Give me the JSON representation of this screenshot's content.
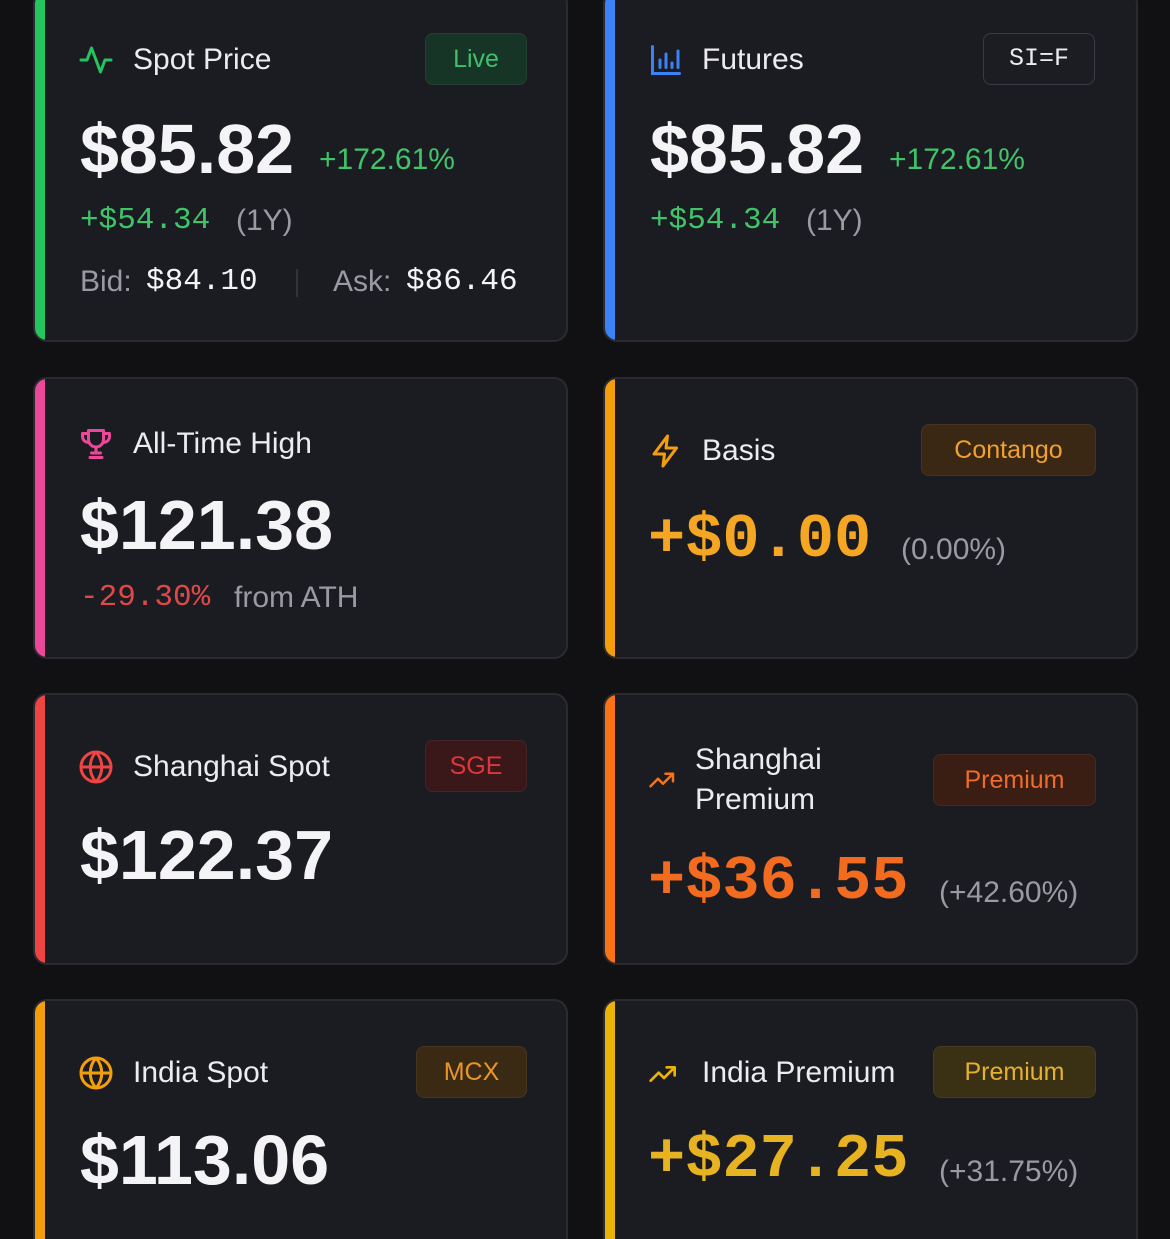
{
  "cards": [
    {
      "title": "Spot Price",
      "badge": "Live",
      "price": "$85.82",
      "change_pct": "+172.61%",
      "change_abs": "+$54.34",
      "period": "(1Y)",
      "bid_label": "Bid:",
      "bid": "$84.10",
      "ask_label": "Ask:",
      "ask": "$86.46"
    },
    {
      "title": "Futures",
      "badge": "SI=F",
      "price": "$85.82",
      "change_pct": "+172.61%",
      "change_abs": "+$54.34",
      "period": "(1Y)"
    },
    {
      "title": "All-Time High",
      "price": "$121.38",
      "change_pct": "-29.30%",
      "note": "from ATH"
    },
    {
      "title": "Basis",
      "badge": "Contango",
      "price": "+$0.00",
      "change_pct": "(0.00%)"
    },
    {
      "title": "Shanghai Spot",
      "badge": "SGE",
      "price": "$122.37"
    },
    {
      "title": "Shanghai Premium",
      "badge": "Premium",
      "price": "+$36.55",
      "change_pct": "(+42.60%)"
    },
    {
      "title": "India Spot",
      "badge": "MCX",
      "price": "$113.06"
    },
    {
      "title": "India Premium",
      "badge": "Premium",
      "price": "+$27.25",
      "change_pct": "(+31.75%)"
    }
  ]
}
